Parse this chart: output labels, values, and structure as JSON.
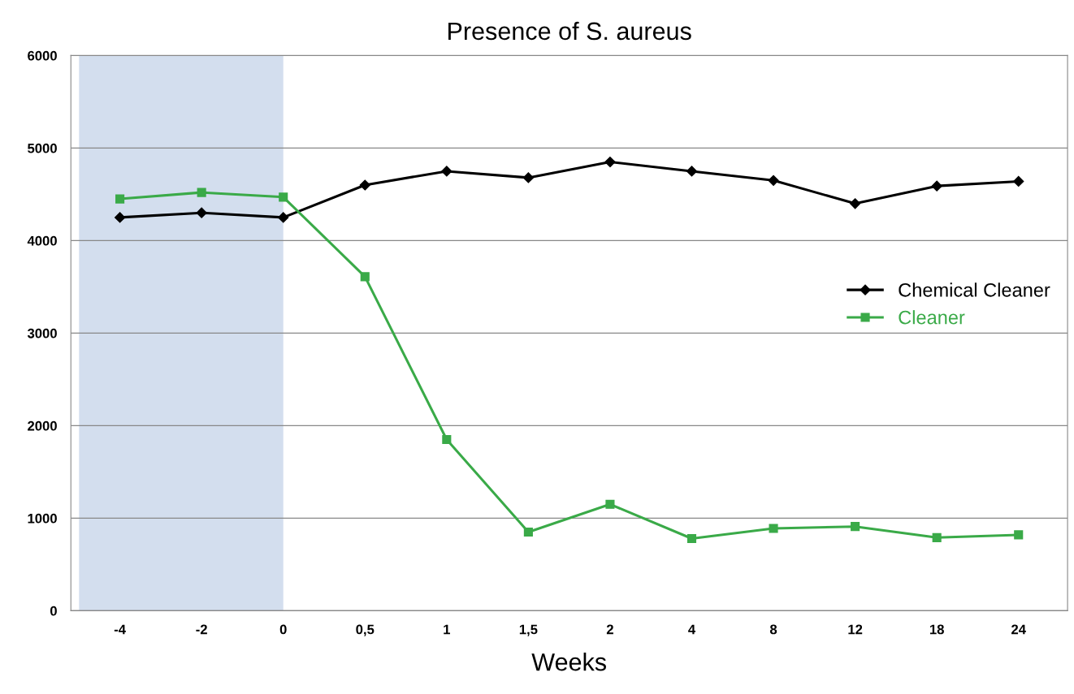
{
  "chart_data": {
    "type": "line",
    "title": "Presence of S. aureus",
    "xlabel": "Weeks",
    "categories": [
      "-4",
      "-2",
      "0",
      "0,5",
      "1",
      "1,5",
      "2",
      "4",
      "8",
      "12",
      "18",
      "24"
    ],
    "series": [
      {
        "name": "Chemical Cleaner",
        "color": "#000000",
        "marker": "diamond",
        "values": [
          4250,
          4300,
          4250,
          4600,
          4750,
          4680,
          4850,
          4750,
          4650,
          4400,
          4590,
          4640
        ]
      },
      {
        "name": "Cleaner",
        "color": "#3aaa48",
        "marker": "square",
        "values": [
          4450,
          4520,
          4470,
          3610,
          1850,
          850,
          1150,
          780,
          890,
          910,
          790,
          820
        ]
      }
    ],
    "ylim": [
      0,
      6000
    ],
    "yticks": [
      0,
      1000,
      2000,
      3000,
      4000,
      5000,
      6000
    ],
    "bands": [
      {
        "axis": "x",
        "from": "-4",
        "to": "0",
        "color": "#d3deee"
      }
    ],
    "grid": "y",
    "legend": "right"
  }
}
